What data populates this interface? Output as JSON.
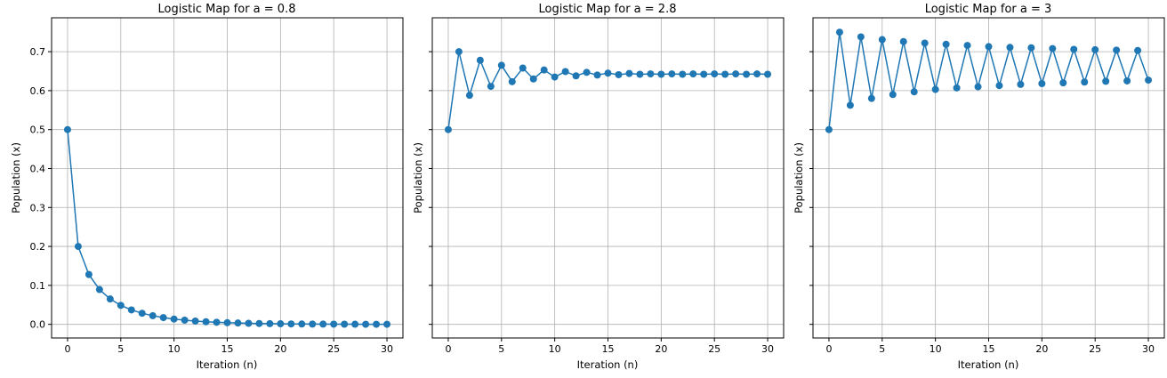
{
  "figure_color": "#1f77b4",
  "chart_data": [
    {
      "type": "line",
      "title": "Logistic Map for a = 0.8",
      "xlabel": "Iteration (n)",
      "ylabel": "Population (x)",
      "xlim": [
        -1.5,
        31.5
      ],
      "ylim": [
        -0.035,
        0.787
      ],
      "xticks": [
        "0",
        "5",
        "10",
        "15",
        "20",
        "25",
        "30"
      ],
      "yticks": [
        "0.0",
        "0.1",
        "0.2",
        "0.3",
        "0.4",
        "0.5",
        "0.6",
        "0.7"
      ],
      "show_ytick_labels": true,
      "grid": true,
      "marker": "circle",
      "series": [
        {
          "x": [
            0,
            1,
            2,
            3,
            4,
            5,
            6,
            7,
            8,
            9,
            10,
            11,
            12,
            13,
            14,
            15,
            16,
            17,
            18,
            19,
            20,
            21,
            22,
            23,
            24,
            25,
            26,
            27,
            28,
            29,
            30
          ],
          "values": [
            0.5,
            0.2,
            0.128,
            0.0893,
            0.0651,
            0.0487,
            0.037,
            0.0285,
            0.0222,
            0.0173,
            0.0136,
            0.0108,
            0.0085,
            0.0067,
            0.0053,
            0.0043,
            0.0034,
            0.0027,
            0.0022,
            0.0017,
            0.0014,
            0.0011,
            0.0009,
            0.0007,
            0.0006,
            0.0005,
            0.0004,
            0.0003,
            0.0002,
            0.0002,
            0.0002
          ]
        }
      ]
    },
    {
      "type": "line",
      "title": "Logistic Map for a = 2.8",
      "xlabel": "Iteration (n)",
      "ylabel": "Population (x)",
      "xlim": [
        -1.5,
        31.5
      ],
      "ylim": [
        -0.035,
        0.787
      ],
      "xticks": [
        "0",
        "5",
        "10",
        "15",
        "20",
        "25",
        "30"
      ],
      "yticks": [
        "0.0",
        "0.1",
        "0.2",
        "0.3",
        "0.4",
        "0.5",
        "0.6",
        "0.7"
      ],
      "show_ytick_labels": false,
      "grid": true,
      "marker": "circle",
      "series": [
        {
          "x": [
            0,
            1,
            2,
            3,
            4,
            5,
            6,
            7,
            8,
            9,
            10,
            11,
            12,
            13,
            14,
            15,
            16,
            17,
            18,
            19,
            20,
            21,
            22,
            23,
            24,
            25,
            26,
            27,
            28,
            29,
            30
          ],
          "values": [
            0.5,
            0.7,
            0.588,
            0.678,
            0.611,
            0.665,
            0.623,
            0.658,
            0.63,
            0.653,
            0.635,
            0.649,
            0.638,
            0.647,
            0.64,
            0.645,
            0.641,
            0.644,
            0.642,
            0.643,
            0.642,
            0.643,
            0.642,
            0.643,
            0.642,
            0.643,
            0.642,
            0.643,
            0.642,
            0.643,
            0.642
          ]
        }
      ]
    },
    {
      "type": "line",
      "title": "Logistic Map for a = 3",
      "xlabel": "Iteration (n)",
      "ylabel": "Population (x)",
      "xlim": [
        -1.5,
        31.5
      ],
      "ylim": [
        -0.035,
        0.787
      ],
      "xticks": [
        "0",
        "5",
        "10",
        "15",
        "20",
        "25",
        "30"
      ],
      "yticks": [
        "0.0",
        "0.1",
        "0.2",
        "0.3",
        "0.4",
        "0.5",
        "0.6",
        "0.7"
      ],
      "show_ytick_labels": false,
      "grid": true,
      "marker": "circle",
      "series": [
        {
          "x": [
            0,
            1,
            2,
            3,
            4,
            5,
            6,
            7,
            8,
            9,
            10,
            11,
            12,
            13,
            14,
            15,
            16,
            17,
            18,
            19,
            20,
            21,
            22,
            23,
            24,
            25,
            26,
            27,
            28,
            29,
            30
          ],
          "values": [
            0.5,
            0.75,
            0.5625,
            0.738,
            0.58,
            0.731,
            0.59,
            0.726,
            0.597,
            0.722,
            0.603,
            0.719,
            0.607,
            0.716,
            0.61,
            0.713,
            0.613,
            0.711,
            0.616,
            0.71,
            0.618,
            0.708,
            0.62,
            0.706,
            0.622,
            0.705,
            0.624,
            0.704,
            0.625,
            0.703,
            0.627
          ]
        }
      ]
    }
  ]
}
